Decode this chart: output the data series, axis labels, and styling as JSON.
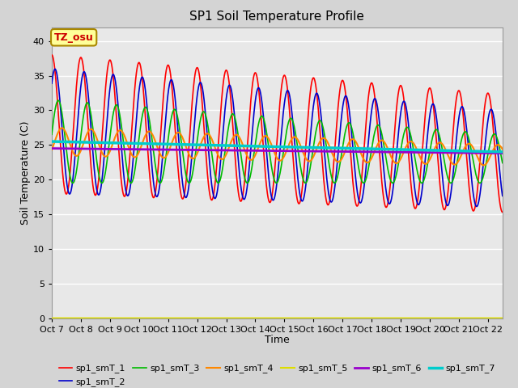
{
  "title": "SP1 Soil Temperature Profile",
  "xlabel": "Time",
  "ylabel": "Soil Temperature (C)",
  "ylim": [
    0,
    42
  ],
  "yticks": [
    0,
    5,
    10,
    15,
    20,
    25,
    30,
    35,
    40
  ],
  "xtick_labels": [
    "Oct 7",
    "Oct 8",
    "Oct 9",
    "Oct 10",
    "Oct 11",
    "Oct 12",
    "Oct 13",
    "Oct 14",
    "Oct 15",
    "Oct 16",
    "Oct 17",
    "Oct 18",
    "Oct 19",
    "Oct 20",
    "Oct 21",
    "Oct 22"
  ],
  "annotation_text": "TZ_osu",
  "annotation_color": "#cc0000",
  "annotation_bg": "#ffff99",
  "annotation_border": "#aa8800",
  "series_colors": [
    "#ff0000",
    "#0000cc",
    "#00bb00",
    "#ff8800",
    "#dddd00",
    "#9900cc",
    "#00cccc"
  ],
  "series_labels": [
    "sp1_smT_1",
    "sp1_smT_2",
    "sp1_smT_3",
    "sp1_smT_4",
    "sp1_smT_5",
    "sp1_smT_6",
    "sp1_smT_7"
  ],
  "series_linewidths": [
    1.2,
    1.2,
    1.2,
    1.5,
    1.5,
    2.0,
    2.5
  ],
  "n_days": 15.5,
  "points_per_day": 240,
  "bg_color": "#e8e8e8",
  "plot_bg": "#e8e8e8",
  "grid_color": "#ffffff",
  "title_fontsize": 11,
  "tick_fontsize": 8,
  "label_fontsize": 9,
  "legend_fontsize": 8
}
